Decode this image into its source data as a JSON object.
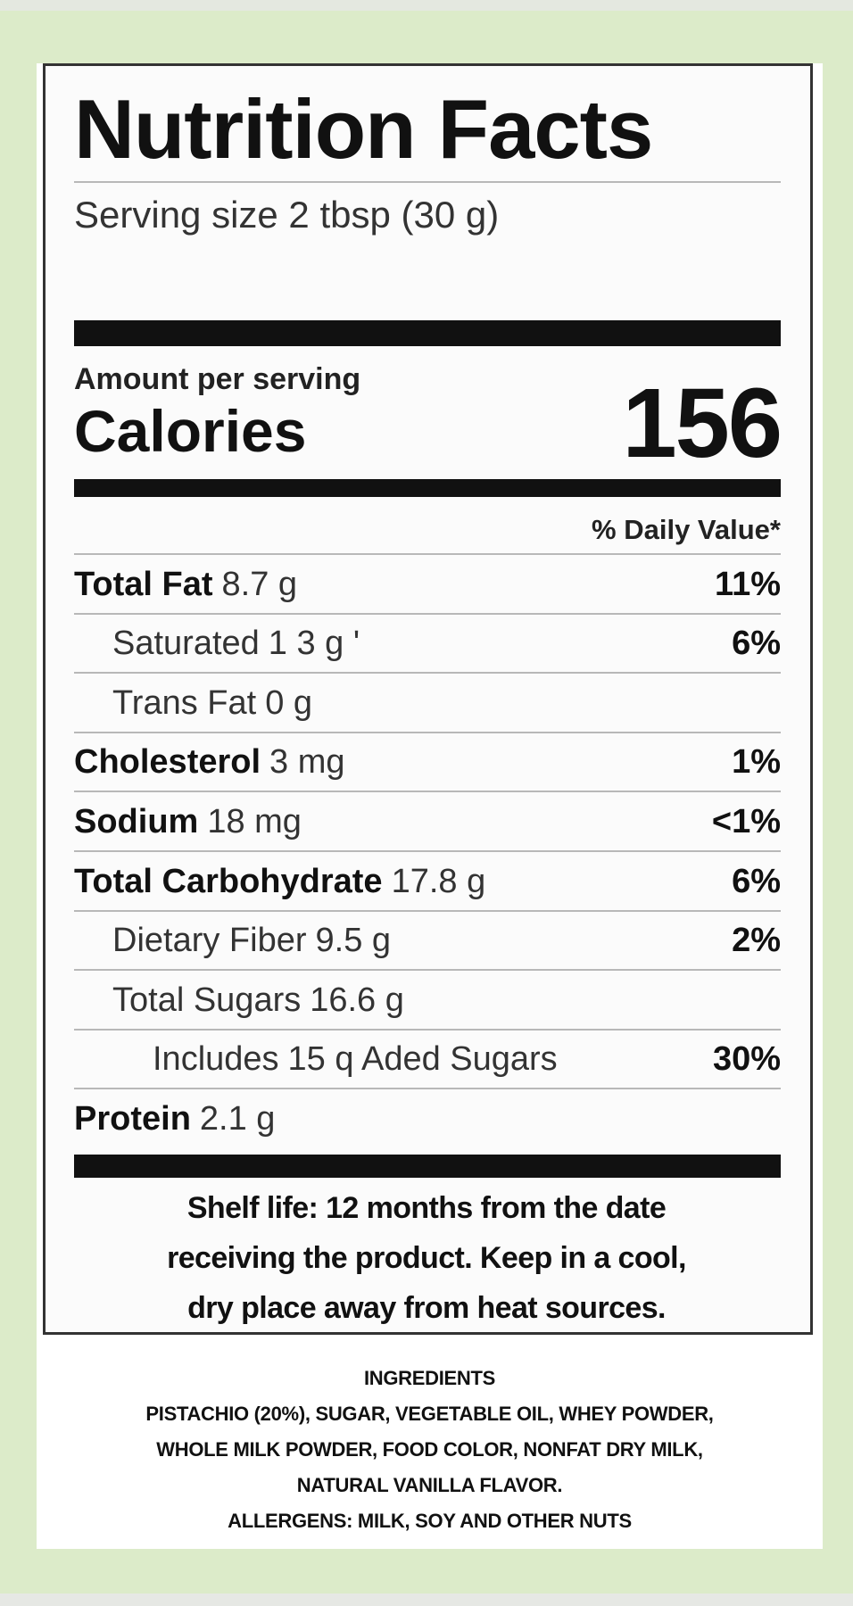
{
  "label": {
    "title": "Nutrition Facts",
    "serving_size": "Serving size 2 tbsp (30 g)",
    "amount_per_serving": "Amount per serving",
    "calories_label": "Calories",
    "calories_value": "156",
    "daily_value_header": "% Daily Value*",
    "nutrients": [
      {
        "name": "Total Fat",
        "amount": "8.7 g",
        "dv": "11%",
        "bold": true,
        "indent": 0
      },
      {
        "name": "Saturated",
        "amount": "1 3 g '",
        "dv": "6%",
        "bold": false,
        "indent": 1
      },
      {
        "name": "Trans Fat",
        "amount": "0 g",
        "dv": "",
        "bold": false,
        "indent": 1
      },
      {
        "name": "Cholesterol",
        "amount": "3 mg",
        "dv": "1%",
        "bold": true,
        "indent": 0
      },
      {
        "name": "Sodium",
        "amount": "18 mg",
        "dv": "<1%",
        "bold": true,
        "indent": 0
      },
      {
        "name": "Total Carbohydrate",
        "amount": "17.8 g",
        "dv": "6%",
        "bold": true,
        "indent": 0
      },
      {
        "name": "Dietary Fiber",
        "amount": "9.5 g",
        "dv": "2%",
        "bold": false,
        "indent": 1
      },
      {
        "name": "Total Sugars",
        "amount": "16.6 g",
        "dv": "",
        "bold": false,
        "indent": 1
      },
      {
        "name": "Includes",
        "amount": "15 q Aded Sugars",
        "dv": "30%",
        "bold": false,
        "indent": 2
      },
      {
        "name": "Protein",
        "amount": "2.1 g",
        "dv": "",
        "bold": true,
        "indent": 0
      }
    ],
    "shelf_life": [
      "Shelf life: 12 months from the date",
      "receiving  the product. Keep in a cool,",
      "dry place away from heat sources."
    ]
  },
  "ingredients": {
    "heading": "INGREDIENTS",
    "lines": [
      "PISTACHIO (20%), SUGAR, VEGETABLE OIL, WHEY POWDER,",
      "WHOLE MILK POWDER, FOOD COLOR, NONFAT DRY MILK,",
      "NATURAL VANILLA FLAVOR."
    ],
    "allergens": "ALLERGENS: MILK, SOY AND OTHER NUTS"
  },
  "colors": {
    "background": "#dcebc9",
    "label_bg": "#fbfbfb",
    "text": "#111111"
  }
}
